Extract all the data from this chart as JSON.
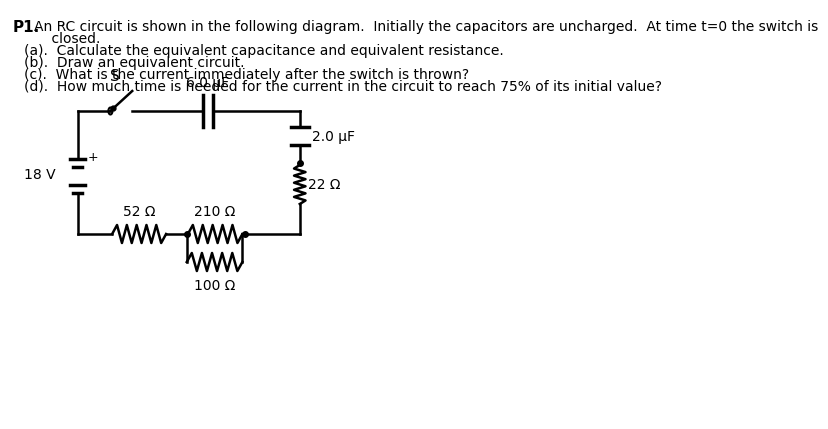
{
  "title_text": "P1.",
  "line1": "An RC circuit is shown in the following diagram.  Initially the capacitors are uncharged.  At time t=0 the switch is",
  "line2": "    closed.",
  "parts": [
    "(a).  Calculate the equivalent capacitance and equivalent resistance.",
    "(b).  Draw an equivalent circuit.",
    "(c).  What is the current immediately after the switch is thrown?",
    "(d).  How much time is needed for the current in the circuit to reach 75% of its initial value?"
  ],
  "circuit": {
    "battery_voltage": "18 V",
    "capacitor1": "6.0 μF",
    "capacitor2": "2.0 μF",
    "resistor1": "52 Ω",
    "resistor2": "210 Ω",
    "resistor3": "22 Ω",
    "resistor4": "100 Ω",
    "switch_label": "S"
  },
  "colors": {
    "text": "#000000",
    "circuit": "#000000",
    "background": "#ffffff"
  },
  "font_size_body": 10,
  "font_size_label": 10
}
